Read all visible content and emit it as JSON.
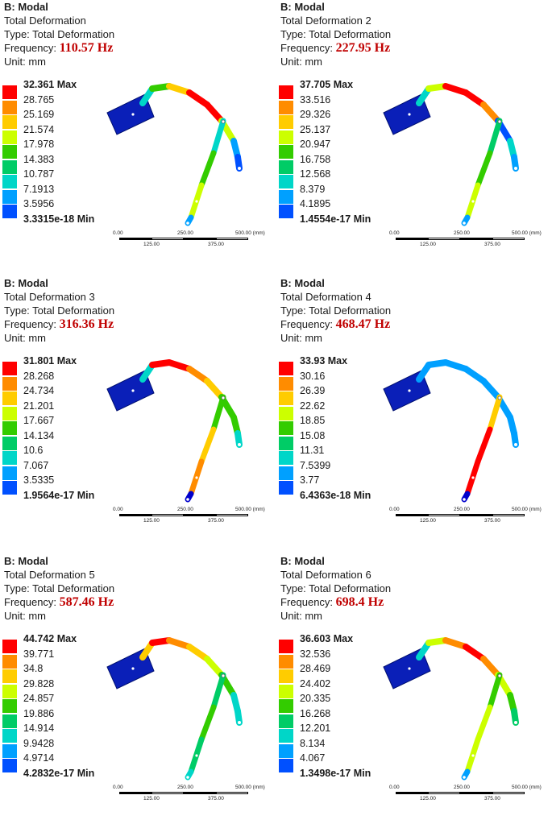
{
  "colors": [
    "#ff0000",
    "#ff8c00",
    "#ffcc00",
    "#ccff00",
    "#33cc00",
    "#00cc66",
    "#00d6c8",
    "#00a0ff",
    "#0050ff",
    "#0000cc"
  ],
  "panels": [
    {
      "title": "B: Modal",
      "name": "Total Deformation",
      "type": "Type: Total Deformation",
      "freq_label": "Frequency: ",
      "freq": "110.57 Hz",
      "unit": "Unit: mm",
      "legend": [
        "32.361 Max",
        "28.765",
        "25.169",
        "21.574",
        "17.978",
        "14.383",
        "10.787",
        "7.1913",
        "3.5956",
        "3.3315e-18 Min"
      ]
    },
    {
      "title": "B: Modal",
      "name": "Total Deformation 2",
      "type": "Type: Total Deformation",
      "freq_label": "Frequency: ",
      "freq": "227.95 Hz",
      "unit": "Unit: mm",
      "legend": [
        "37.705 Max",
        "33.516",
        "29.326",
        "25.137",
        "20.947",
        "16.758",
        "12.568",
        "8.379",
        "4.1895",
        "1.4554e-17 Min"
      ]
    },
    {
      "title": "B: Modal",
      "name": "Total Deformation 3",
      "type": "Type: Total Deformation",
      "freq_label": "Frequency: ",
      "freq": "316.36 Hz",
      "unit": "Unit: mm",
      "legend": [
        "31.801 Max",
        "28.268",
        "24.734",
        "21.201",
        "17.667",
        "14.134",
        "10.6",
        "7.067",
        "3.5335",
        "1.9564e-17 Min"
      ]
    },
    {
      "title": "B: Modal",
      "name": "Total Deformation 4",
      "type": "Type: Total Deformation",
      "freq_label": "Frequency: ",
      "freq": "468.47 Hz",
      "unit": "Unit: mm",
      "legend": [
        "33.93 Max",
        "30.16",
        "26.39",
        "22.62",
        "18.85",
        "15.08",
        "11.31",
        "7.5399",
        "3.77",
        "6.4363e-18 Min"
      ]
    },
    {
      "title": "B: Modal",
      "name": "Total Deformation 5",
      "type": "Type: Total Deformation",
      "freq_label": "Frequency: ",
      "freq": "587.46 Hz",
      "unit": "Unit: mm",
      "legend": [
        "44.742 Max",
        "39.771",
        "34.8",
        "29.828",
        "24.857",
        "19.886",
        "14.914",
        "9.9428",
        "4.9714",
        "4.2832e-17 Min"
      ]
    },
    {
      "title": "B: Modal",
      "name": "Total Deformation 6",
      "type": "Type: Total Deformation",
      "freq_label": "Frequency: ",
      "freq": "698.4 Hz",
      "unit": "Unit: mm",
      "legend": [
        "36.603 Max",
        "32.536",
        "28.469",
        "24.402",
        "20.335",
        "16.268",
        "12.201",
        "8.134",
        "4.067",
        "1.3498e-17 Min"
      ]
    }
  ],
  "scale": {
    "t0": "0.00",
    "t1": "250.00",
    "t2": "500.00 (mm)",
    "t3": "125.00",
    "t4": "375.00"
  }
}
